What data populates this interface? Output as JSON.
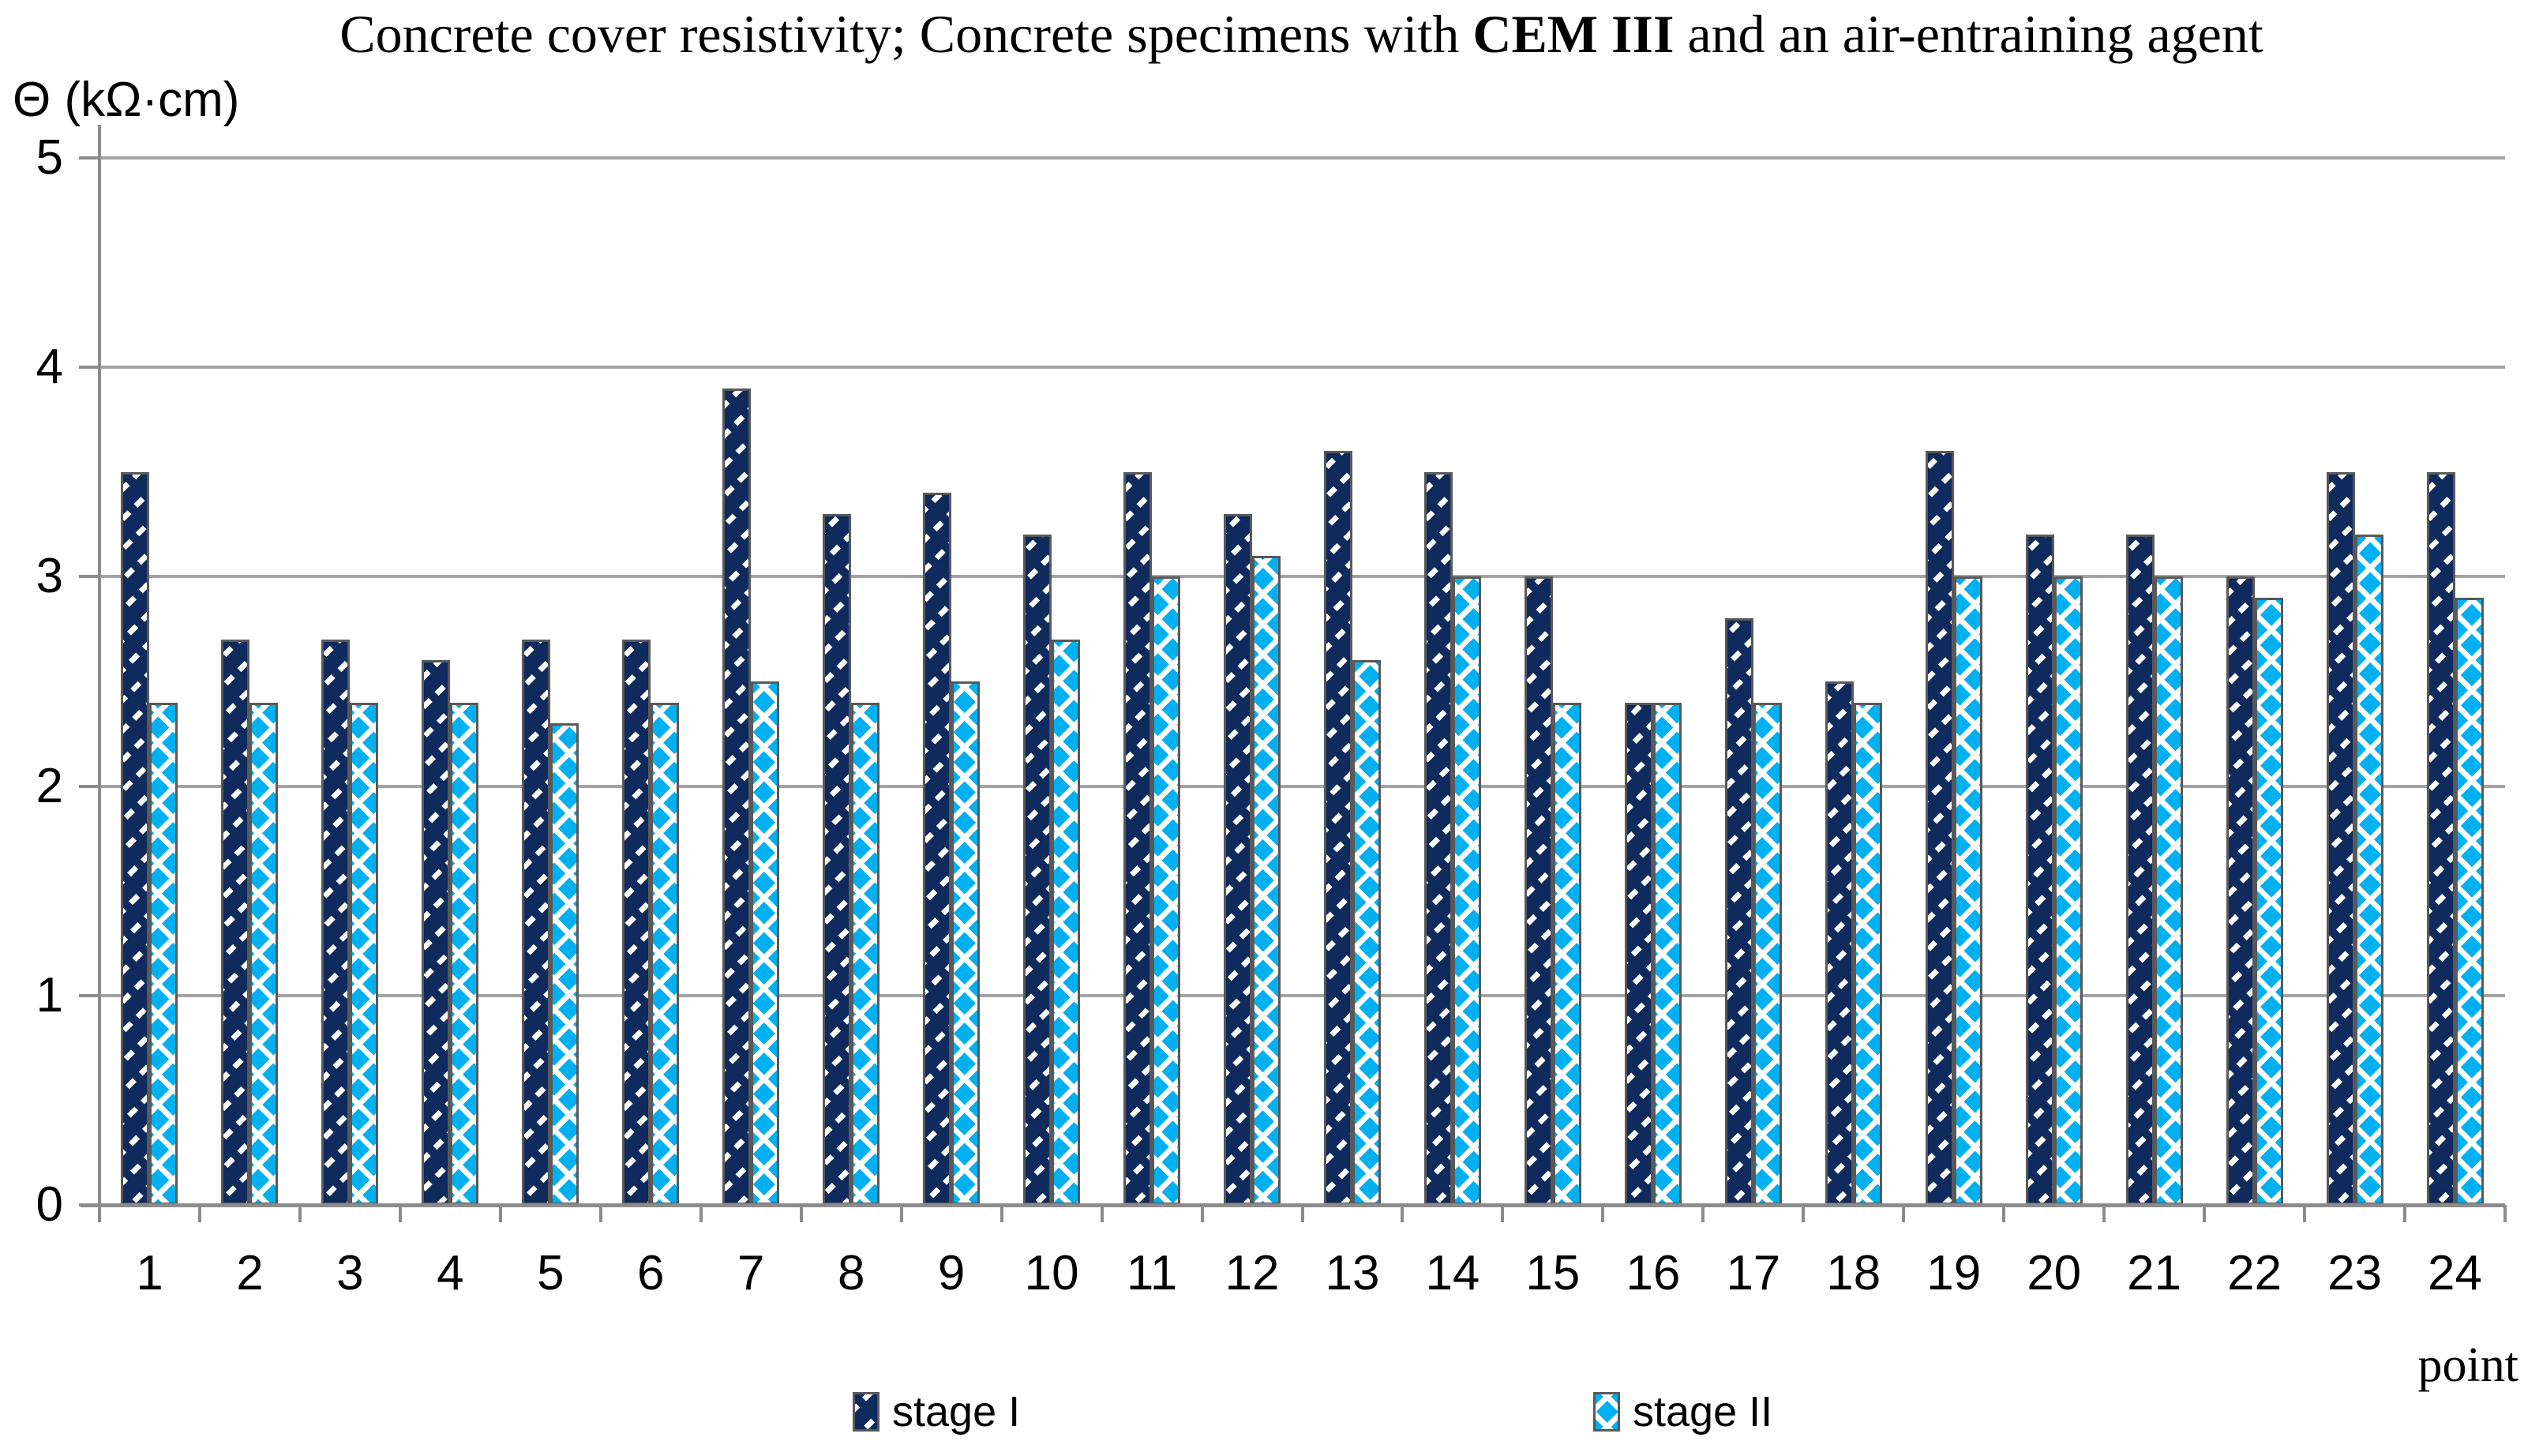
{
  "title": {
    "part1": "Concrete cover resistivity; Concrete specimens with ",
    "bold": "CEM III",
    "part2": " and an air-entraining agent"
  },
  "colors": {
    "stage1": "#0f2a5c",
    "stage2": "#00b0f0",
    "bar_outline": "#595959",
    "gridline": "#a3a3a3",
    "axis": "#8c8c8c"
  },
  "chart_data": {
    "type": "bar",
    "title": "Concrete cover resistivity; Concrete specimens with CEM III and an air-entraining agent",
    "ylabel": "Θ (kΩ·cm)",
    "xlabel": "point",
    "ylim": [
      0,
      5
    ],
    "y_ticks": [
      0,
      1,
      2,
      3,
      4,
      5
    ],
    "grid": true,
    "legend_position": "bottom",
    "categories": [
      "1",
      "2",
      "3",
      "4",
      "5",
      "6",
      "7",
      "8",
      "9",
      "10",
      "11",
      "12",
      "13",
      "14",
      "15",
      "16",
      "17",
      "18",
      "19",
      "20",
      "21",
      "22",
      "23",
      "24"
    ],
    "series": [
      {
        "name": "stage I",
        "pattern": "diagonal-dash",
        "values": [
          3.5,
          2.7,
          2.7,
          2.6,
          2.7,
          2.7,
          3.9,
          3.3,
          3.4,
          3.2,
          3.5,
          3.3,
          3.6,
          3.5,
          3.0,
          2.4,
          2.8,
          2.5,
          3.6,
          3.2,
          3.2,
          3.0,
          3.5,
          3.5
        ]
      },
      {
        "name": "stage II",
        "pattern": "diagonal-crosshatch",
        "values": [
          2.4,
          2.4,
          2.4,
          2.4,
          2.3,
          2.4,
          2.5,
          2.4,
          2.5,
          2.7,
          3.0,
          3.1,
          2.6,
          3.0,
          2.4,
          2.4,
          2.4,
          2.4,
          3.0,
          3.0,
          3.0,
          2.9,
          3.2,
          2.9
        ]
      }
    ]
  }
}
